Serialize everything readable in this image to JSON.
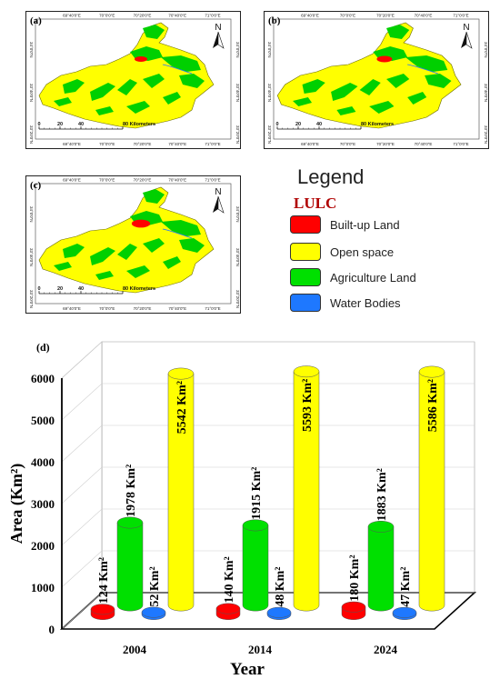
{
  "panels": [
    {
      "label": "(a)",
      "top_coords": [
        "69°40'0\"E",
        "70°0'0\"E",
        "70°20'0\"E",
        "70°40'0\"E",
        "71°0'0\"E"
      ],
      "side_coords": [
        "34°0'0\"N",
        "33°40'0\"N",
        "33°20'0\"N"
      ],
      "scale": [
        "0",
        "20",
        "40",
        "80 Kilometers"
      ]
    },
    {
      "label": "(b)",
      "top_coords": [
        "69°40'0\"E",
        "70°0'0\"E",
        "70°20'0\"E",
        "70°40'0\"E",
        "71°0'0\"E"
      ],
      "side_coords": [
        "34°0'0\"N",
        "33°40'0\"N",
        "33°20'0\"N"
      ],
      "scale": [
        "0",
        "20",
        "40",
        "80 Kilometers"
      ]
    },
    {
      "label": "(c)",
      "top_coords": [
        "69°40'0\"E",
        "70°0'0\"E",
        "70°20'0\"E",
        "70°40'0\"E",
        "71°0'0\"E"
      ],
      "side_coords": [
        "34°0'0\"N",
        "33°40'0\"N",
        "33°20'0\"N"
      ],
      "scale": [
        "0",
        "20",
        "40",
        "80 Kilometers"
      ]
    }
  ],
  "north_label": "N",
  "legend": {
    "title": "Legend",
    "subtitle": "LULC",
    "items": [
      {
        "label": "Built-up Land",
        "color": "#ff0000"
      },
      {
        "label": "Open space",
        "color": "#ffff00"
      },
      {
        "label": "Agriculture Land",
        "color": "#00e000"
      },
      {
        "label": "Water Bodies",
        "color": "#1e78ff"
      }
    ]
  },
  "chart_label": "(d)",
  "chart_data": {
    "type": "bar",
    "categories": [
      "2004",
      "2014",
      "2024"
    ],
    "series": [
      {
        "name": "Built-up Land",
        "color": "#ff0000",
        "values": [
          124,
          140,
          180
        ]
      },
      {
        "name": "Agriculture Land",
        "color": "#00e000",
        "values": [
          1978,
          1915,
          1883
        ]
      },
      {
        "name": "Water Bodies",
        "color": "#1e78ff",
        "values": [
          52,
          48,
          47
        ]
      },
      {
        "name": "Open space",
        "color": "#ffff00",
        "values": [
          5542,
          5593,
          5586
        ]
      }
    ],
    "value_labels": [
      [
        "124 Km²",
        "1978 Km²",
        "52 Km²",
        "5542 Km²"
      ],
      [
        "140 Km²",
        "1915 Km²",
        "48 Km²",
        "5593 Km²"
      ],
      [
        "180 Km²",
        "1883 Km²",
        "47 Km²",
        "5586 Km²"
      ]
    ],
    "ylabel": "Area (Km²)",
    "xlabel": "Year",
    "ylim": [
      0,
      6000
    ],
    "yticks": [
      0,
      1000,
      2000,
      3000,
      4000,
      5000,
      6000
    ],
    "grid": true
  }
}
